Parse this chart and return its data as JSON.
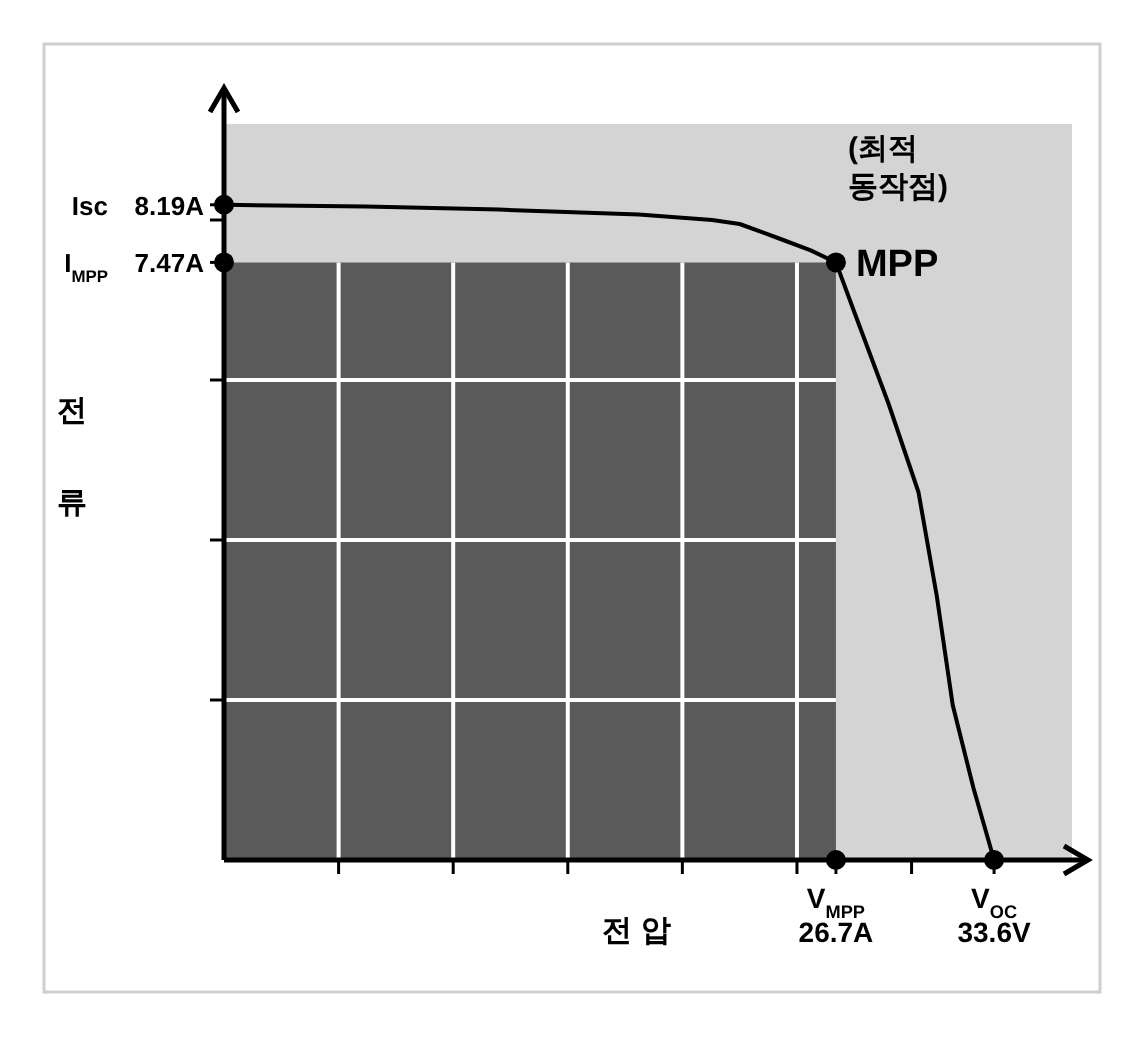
{
  "chart_data": {
    "type": "line",
    "xlabel": "전 압",
    "ylabel": "전류",
    "xlim": [
      0,
      37
    ],
    "ylim": [
      0,
      9.2
    ],
    "xticks": [
      {
        "value": 5,
        "label": null
      },
      {
        "value": 10,
        "label": null
      },
      {
        "value": 15,
        "label": null
      },
      {
        "value": 20,
        "label": null
      },
      {
        "value": 25,
        "label": null
      },
      {
        "value": 26.7,
        "label": "V$_{MPP}$ 26.7A"
      },
      {
        "value": 30,
        "label": null
      },
      {
        "value": 33.6,
        "label": "V$_{OC}$ 33.6V"
      }
    ],
    "yticks": [
      {
        "value": 2,
        "label": null
      },
      {
        "value": 4,
        "label": null
      },
      {
        "value": 6,
        "label": null
      },
      {
        "value": 7.47,
        "label": "7.47A"
      },
      {
        "value": 8,
        "label": null
      },
      {
        "value": 8.19,
        "label": "8.19A"
      }
    ],
    "grid": true,
    "series": [
      {
        "type": "area",
        "color": "#5a5a5a",
        "x": [
          0,
          26.7
        ],
        "values": [
          7.47,
          7.47
        ]
      },
      {
        "color": "#000000",
        "x": [
          0,
          6.2,
          12,
          18.1,
          21.3,
          22.5,
          24.4,
          25.6,
          26.7,
          27.5,
          29,
          30.3,
          31.1,
          31.8,
          32.7,
          33.6
        ],
        "values": [
          8.19,
          8.17,
          8.13,
          8.07,
          8.0,
          7.95,
          7.75,
          7.62,
          7.47,
          6.85,
          5.7,
          4.6,
          3.3,
          1.93,
          0.9,
          0
        ]
      },
      {
        "type": "scatter",
        "color": "#000000",
        "marker": "circle",
        "x": [
          0,
          0,
          26.7,
          26.7,
          33.6
        ],
        "values": [
          8.19,
          7.47,
          7.47,
          0,
          0
        ]
      }
    ],
    "annotations": [
      "Isc",
      "I$_{MPP}$",
      {
        "text": "(최적 동작점)",
        "x": 26.7,
        "y": 7.47
      },
      {
        "text": "MPP",
        "x": 26.7,
        "y": 7.47
      }
    ]
  }
}
